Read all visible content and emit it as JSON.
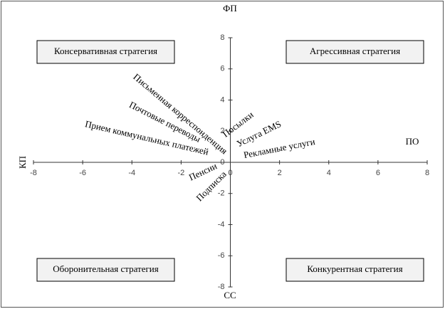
{
  "chart_data": {
    "type": "scatter",
    "x_label": "СС",
    "y_label": "КП",
    "top_label": "ФП",
    "right_label": "ПО",
    "quadrants": [
      "Консервативная стратегия",
      "Агрессивная стратегия",
      "Оборонительная стратегия",
      "Конкурентная стратегия"
    ],
    "labels": [
      "Письменная корреспонденция",
      "Почтовые переводы",
      "Прием коммунальных платежей",
      "Посылки",
      "Услуга EMS",
      "Рекламные услуги",
      "Пенсии",
      "Подписка"
    ],
    "x": [
      -0.2,
      -1.25,
      -0.9,
      -0.25,
      0.3,
      0.55,
      -0.55,
      -0.2
    ],
    "values": [
      0.6,
      1.4,
      0.6,
      1.7,
      1.1,
      0.4,
      -0.25,
      -0.7
    ],
    "xlim": [
      -8,
      8
    ],
    "ylim": [
      -8,
      8
    ],
    "xticks": [
      -8,
      -6,
      -4,
      -2,
      0,
      2,
      4,
      6,
      8
    ],
    "yticks": [
      -8,
      -6,
      -4,
      -2,
      0,
      2,
      4,
      6,
      8
    ]
  }
}
